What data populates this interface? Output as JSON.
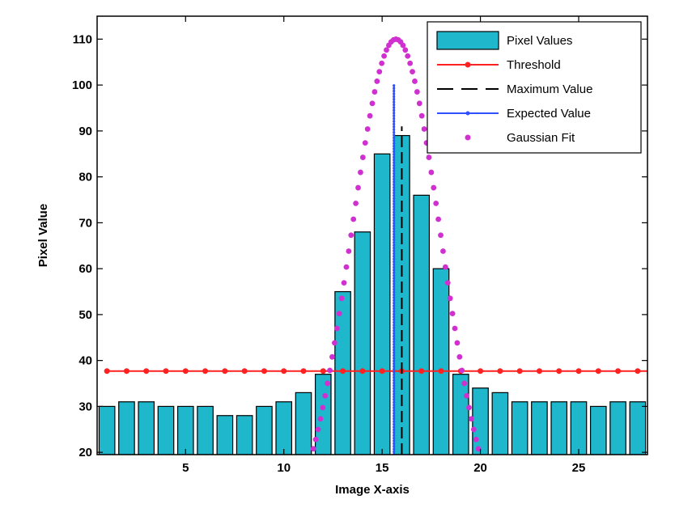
{
  "chart_data": {
    "type": "bar",
    "xlabel": "Image X-axis",
    "ylabel": "Pixel Value",
    "xlim": [
      0.5,
      28.5
    ],
    "ylim": [
      19.5,
      115
    ],
    "xticks": [
      5,
      10,
      15,
      20,
      25
    ],
    "yticks": [
      20,
      30,
      40,
      50,
      60,
      70,
      80,
      90,
      100,
      110
    ],
    "grid": false,
    "legend_position": "top-right",
    "colors": {
      "bars": "#1fb7cc",
      "threshold": "#ff2020",
      "maximum": "#000000",
      "expected": "#3050ff",
      "gaussian": "#d030d0"
    },
    "series": [
      {
        "name": "Pixel Values",
        "type": "bar",
        "x": [
          1,
          2,
          3,
          4,
          5,
          6,
          7,
          8,
          9,
          10,
          11,
          12,
          13,
          14,
          15,
          16,
          17,
          18,
          19,
          20,
          21,
          22,
          23,
          24,
          25,
          26,
          27,
          28
        ],
        "values": [
          30,
          31,
          31,
          30,
          30,
          30,
          28,
          28,
          30,
          31,
          33,
          37,
          55,
          68,
          85,
          89,
          76,
          60,
          37,
          34,
          33,
          31,
          31,
          31,
          31,
          30,
          31,
          31
        ]
      },
      {
        "name": "Threshold",
        "type": "line",
        "y": 37.7,
        "x_start": 1,
        "x_end": 28.5,
        "marker_step": 1
      },
      {
        "name": "Maximum Value",
        "type": "vline",
        "x": 16,
        "y_range": [
          19.5,
          91
        ]
      },
      {
        "name": "Expected Value",
        "type": "vline",
        "x": 15.6,
        "y_range": [
          19.5,
          100
        ]
      },
      {
        "name": "Gaussian Fit",
        "type": "scatter",
        "mu": 15.7,
        "sigma": 2.3,
        "amplitude": 110,
        "x_start": 10.9,
        "x_end": 20.4,
        "step": 0.12
      }
    ]
  }
}
